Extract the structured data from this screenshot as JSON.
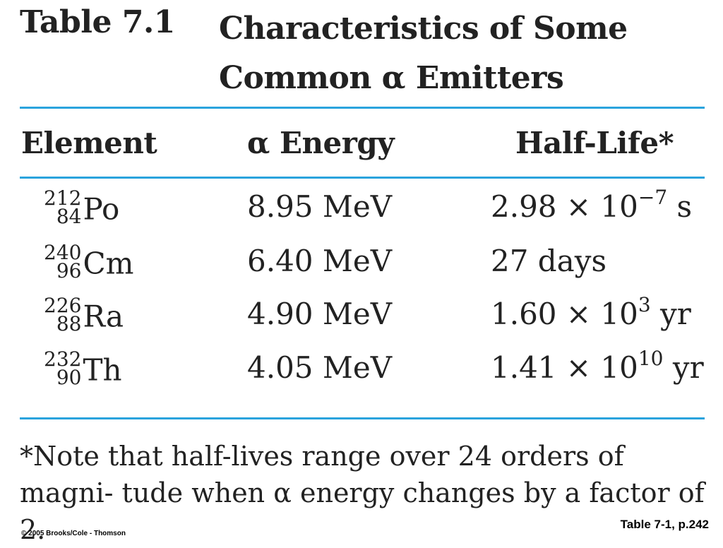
{
  "table": {
    "label": "Table 7.1",
    "title": "Characteristics of Some Common α Emitters",
    "headers": [
      "Element",
      "α Energy",
      "Half-Life*"
    ],
    "rows": [
      {
        "mass": "212",
        "atomic": "84",
        "symbol": "Po",
        "energy": "8.95 MeV",
        "hl_base": "2.98 × 10",
        "hl_exp": "−7",
        "hl_unit": " s"
      },
      {
        "mass": "240",
        "atomic": "96",
        "symbol": "Cm",
        "energy": "6.40 MeV",
        "hl_base": "27 days",
        "hl_exp": "",
        "hl_unit": ""
      },
      {
        "mass": "226",
        "atomic": "88",
        "symbol": "Ra",
        "energy": "4.90 MeV",
        "hl_base": "1.60 × 10",
        "hl_exp": "3",
        "hl_unit": " yr"
      },
      {
        "mass": "232",
        "atomic": "90",
        "symbol": "Th",
        "energy": "4.05 MeV",
        "hl_base": "1.41 × 10",
        "hl_exp": "10",
        "hl_unit": " yr"
      }
    ],
    "note": "*Note that half-lives range over 24 orders of magni- tude when α energy changes by a factor of 2."
  },
  "footer": {
    "copyright": "© 2005 Brooks/Cole - Thomson",
    "reference": "Table 7-1, p.242"
  },
  "colors": {
    "rule": "#2aa3dd",
    "text": "#222222"
  }
}
